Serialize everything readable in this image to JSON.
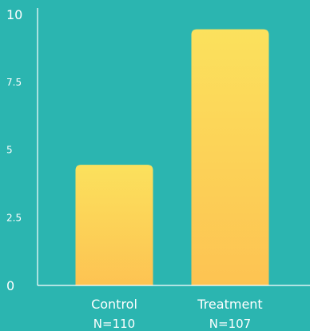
{
  "colors": {
    "background": "#2bb5b0",
    "axis": "#ffffff",
    "text": "#ffffff",
    "bar_top": "#fbe15d",
    "bar_bottom": "#fdc352"
  },
  "chart_data": {
    "type": "bar",
    "title": "",
    "xlabel": "",
    "ylabel": "",
    "categories": [
      "Control",
      "Treatment"
    ],
    "category_sublabels": [
      "N=110",
      "N=107"
    ],
    "values": [
      4.45,
      9.45
    ],
    "ylim": [
      0,
      10
    ],
    "yticks": [
      {
        "value": 0,
        "label": "0"
      },
      {
        "value": 2.5,
        "label": "2.5"
      },
      {
        "value": 5,
        "label": "5"
      },
      {
        "value": 7.5,
        "label": "7.5"
      },
      {
        "value": 10,
        "label": "10"
      }
    ],
    "grid": false,
    "legend": "none"
  }
}
